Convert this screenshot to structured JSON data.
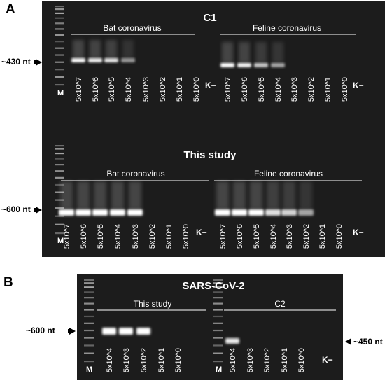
{
  "panels": [
    {
      "letter": "A",
      "gels": [
        {
          "title": "C1",
          "groups": [
            {
              "name": "Bat coronavirus",
              "lanes": [
                "5x10^7",
                "5x10^6",
                "5x10^5",
                "5x10^4",
                "5x10^3",
                "5x10^2",
                "5x10^1",
                "5x10^0"
              ],
              "band_intensity": [
                1.0,
                0.95,
                0.9,
                0.55,
                0,
                0,
                0,
                0
              ]
            },
            {
              "name": "Feline coronavirus",
              "lanes": [
                "5x10^7",
                "5x10^6",
                "5x10^5",
                "5x10^4",
                "5x10^3",
                "5x10^2",
                "5x10^1",
                "5x10^0"
              ],
              "band_intensity": [
                1.0,
                0.95,
                0.75,
                0.6,
                0,
                0,
                0,
                0
              ]
            }
          ],
          "marker_label": "M",
          "negative_label": "K−",
          "size_label": "~430 nt"
        },
        {
          "title": "This study",
          "groups": [
            {
              "name": "Bat coronavirus",
              "lanes": [
                "5x10^7",
                "5x10^6",
                "5x10^5",
                "5x10^4",
                "5x10^3",
                "5x10^2",
                "5x10^1",
                "5x10^0"
              ],
              "band_intensity": [
                1.0,
                1.0,
                1.0,
                1.0,
                1.0,
                0,
                0,
                0
              ]
            },
            {
              "name": "Feline coronavirus",
              "lanes": [
                "5x10^7",
                "5x10^6",
                "5x10^5",
                "5x10^4",
                "5x10^3",
                "5x10^2",
                "5x10^1",
                "5x10^0"
              ],
              "band_intensity": [
                1.0,
                1.0,
                1.0,
                0.85,
                0.8,
                0.6,
                0,
                0
              ]
            }
          ],
          "marker_label": "M",
          "negative_label": "K−",
          "size_label": "~600 nt"
        }
      ]
    },
    {
      "letter": "B",
      "gels": [
        {
          "title": "SARS-CoV-2",
          "groups": [
            {
              "name": "This study",
              "lanes": [
                "5x10^4",
                "5x10^3",
                "5x10^2",
                "5x10^1",
                "5x10^0"
              ],
              "band_intensity": [
                1.0,
                1.0,
                1.0,
                0,
                0
              ]
            },
            {
              "name": "C2",
              "lanes": [
                "5x10^4",
                "5x10^3",
                "5x10^2",
                "5x10^1",
                "5x10^0"
              ],
              "band_intensity": [
                0.9,
                0,
                0,
                0,
                0
              ]
            }
          ],
          "marker_label": "M",
          "negative_label": "K−",
          "size_label_left": "~600 nt",
          "size_label_right": "~450 nt"
        }
      ]
    }
  ],
  "colors": {
    "gel_background": "#1c1c1c",
    "band": "#ffffff",
    "text_on_gel": "#ffffff",
    "text_outside": "#000000"
  }
}
